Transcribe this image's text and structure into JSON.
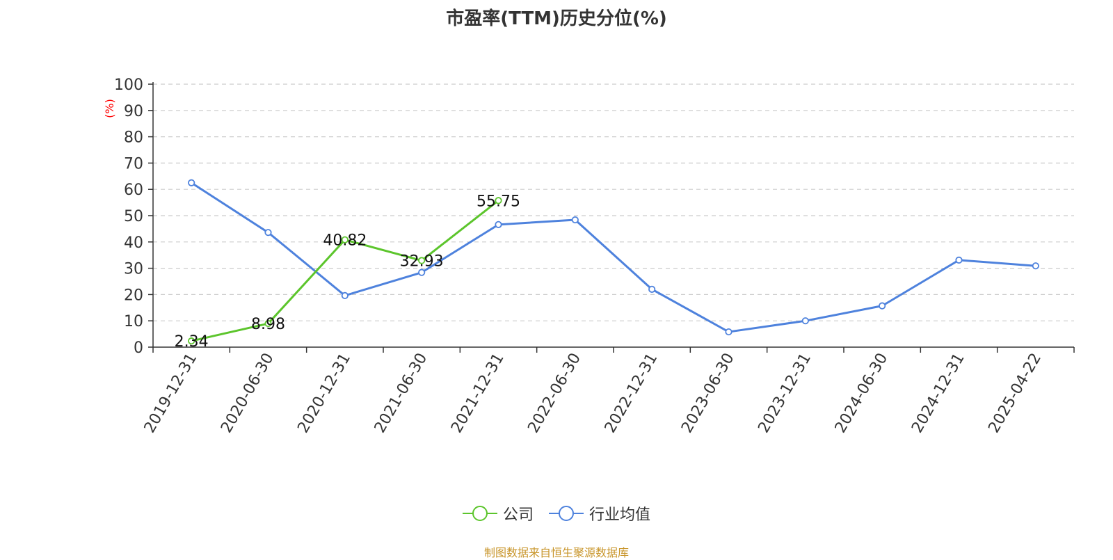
{
  "title": "市盈率(TTM)历史分位(%)",
  "source_note": "制图数据来自恒生聚源数据库",
  "colors": {
    "company": "#5cc52c",
    "industry": "#4e82dd",
    "axis": "#333333",
    "grid": "#cccccc",
    "ylabel": "#ff0000",
    "title": "#333333",
    "source": "#c8952a"
  },
  "chart_data": {
    "type": "line",
    "title": "市盈率(TTM)历史分位(%)",
    "ylabel": "(%)",
    "xlabel": "",
    "ylim": [
      0,
      100
    ],
    "yticks": [
      0,
      10,
      20,
      30,
      40,
      50,
      60,
      70,
      80,
      90,
      100
    ],
    "grid": true,
    "legend_position": "bottom-center",
    "categories": [
      "2019-12-31",
      "2020-06-30",
      "2020-12-31",
      "2021-06-30",
      "2021-12-31",
      "2022-06-30",
      "2022-12-31",
      "2023-06-30",
      "2023-12-31",
      "2024-06-30",
      "2024-12-31",
      "2025-04-22"
    ],
    "series": [
      {
        "name": "公司",
        "color": "#5cc52c",
        "values": [
          2.34,
          8.98,
          40.82,
          32.93,
          55.75,
          null,
          null,
          null,
          null,
          null,
          null,
          null
        ],
        "data_labels": [
          "2.34",
          "8.98",
          "40.82",
          "32.93",
          "55.75",
          "",
          "",
          "",
          "",
          "",
          "",
          ""
        ]
      },
      {
        "name": "行业均值",
        "color": "#4e82dd",
        "values": [
          62.5,
          43.6,
          19.6,
          28.4,
          46.6,
          48.4,
          22.0,
          5.8,
          10.0,
          15.7,
          33.1,
          30.9
        ]
      }
    ]
  }
}
